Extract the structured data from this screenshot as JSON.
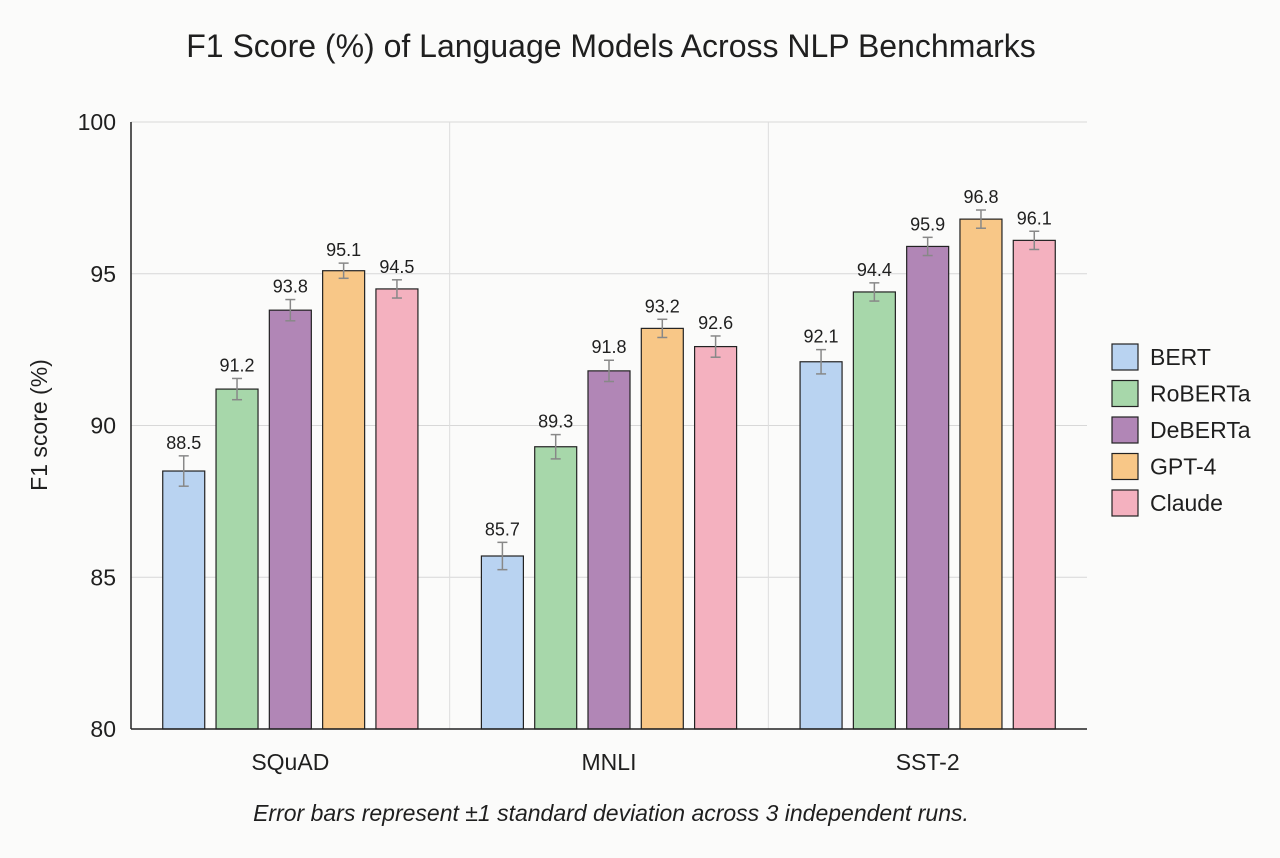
{
  "chart_data": {
    "type": "bar",
    "title": "F1 Score (%) of Language Models Across NLP Benchmarks",
    "xlabel": "",
    "ylabel": "F1 score (%)",
    "ylim": [
      80,
      100
    ],
    "yticks": [
      "80",
      "85",
      "90",
      "95",
      "100"
    ],
    "grid": true,
    "legend_position": "right",
    "categories": [
      "SQuAD",
      "MNLI",
      "SST-2"
    ],
    "series": [
      {
        "name": "BERT",
        "color": "#b9d3f1",
        "values": [
          88.5,
          85.7,
          92.1
        ],
        "labels": [
          "88.5",
          "85.7",
          "92.1"
        ],
        "errors": [
          0.5,
          0.45,
          0.4
        ]
      },
      {
        "name": "RoBERTa",
        "color": "#a7d7aa",
        "values": [
          91.2,
          89.3,
          94.4
        ],
        "labels": [
          "91.2",
          "89.3",
          "94.4"
        ],
        "errors": [
          0.35,
          0.4,
          0.3
        ]
      },
      {
        "name": "DeBERTa",
        "color": "#b186b6",
        "values": [
          93.8,
          91.8,
          95.9
        ],
        "labels": [
          "93.8",
          "91.8",
          "95.9"
        ],
        "errors": [
          0.35,
          0.35,
          0.3
        ]
      },
      {
        "name": "GPT-4",
        "color": "#f8c787",
        "values": [
          95.1,
          93.2,
          96.8
        ],
        "labels": [
          "95.1",
          "93.2",
          "96.8"
        ],
        "errors": [
          0.25,
          0.3,
          0.3
        ]
      },
      {
        "name": "Claude",
        "color": "#f4b1bf",
        "values": [
          94.5,
          92.6,
          96.1
        ],
        "labels": [
          "94.5",
          "92.6",
          "96.1"
        ],
        "errors": [
          0.3,
          0.35,
          0.3
        ]
      }
    ],
    "caption": "Error bars represent ±1 standard deviation across 3 independent runs."
  }
}
